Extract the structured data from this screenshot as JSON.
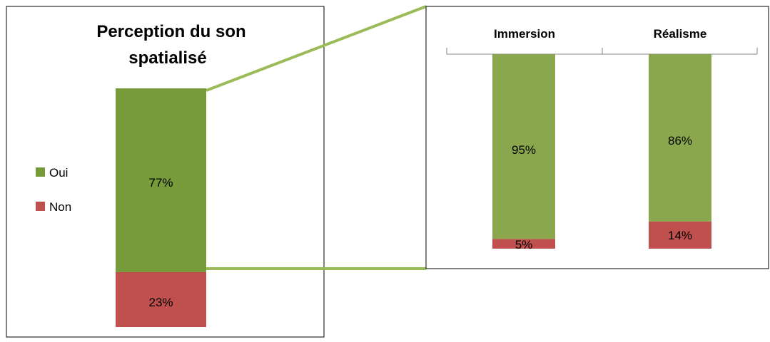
{
  "chart_data": [
    {
      "type": "bar",
      "stacked": true,
      "title": "Perception du son spatialisé",
      "title_lines": [
        "Perception du son spatialisé"
      ],
      "categories": [
        ""
      ],
      "series": [
        {
          "name": "Oui",
          "values": [
            77
          ],
          "labels": [
            "77%"
          ],
          "color": "#779a3a"
        },
        {
          "name": "Non",
          "values": [
            23
          ],
          "labels": [
            "23%"
          ],
          "color": "#c0504d"
        }
      ],
      "ylim": [
        0,
        100
      ],
      "legend": {
        "position": "left",
        "entries": [
          "Oui",
          "Non"
        ]
      },
      "grid": false
    },
    {
      "type": "bar",
      "stacked": true,
      "categories": [
        "Immersion",
        "Réalisme"
      ],
      "series": [
        {
          "name": "Oui",
          "values": [
            95,
            86
          ],
          "labels": [
            "95%",
            "86%"
          ],
          "color": "#8aa74e"
        },
        {
          "name": "Non",
          "values": [
            5,
            14
          ],
          "labels": [
            "5%",
            "14%"
          ],
          "color": "#c0504d"
        }
      ],
      "ylim": [
        0,
        100
      ],
      "xaxis_position": "top",
      "grid": false
    }
  ],
  "colors": {
    "frame": "#000000",
    "connector": "#9bbb59",
    "axis": "#868686",
    "text": "#000000"
  }
}
